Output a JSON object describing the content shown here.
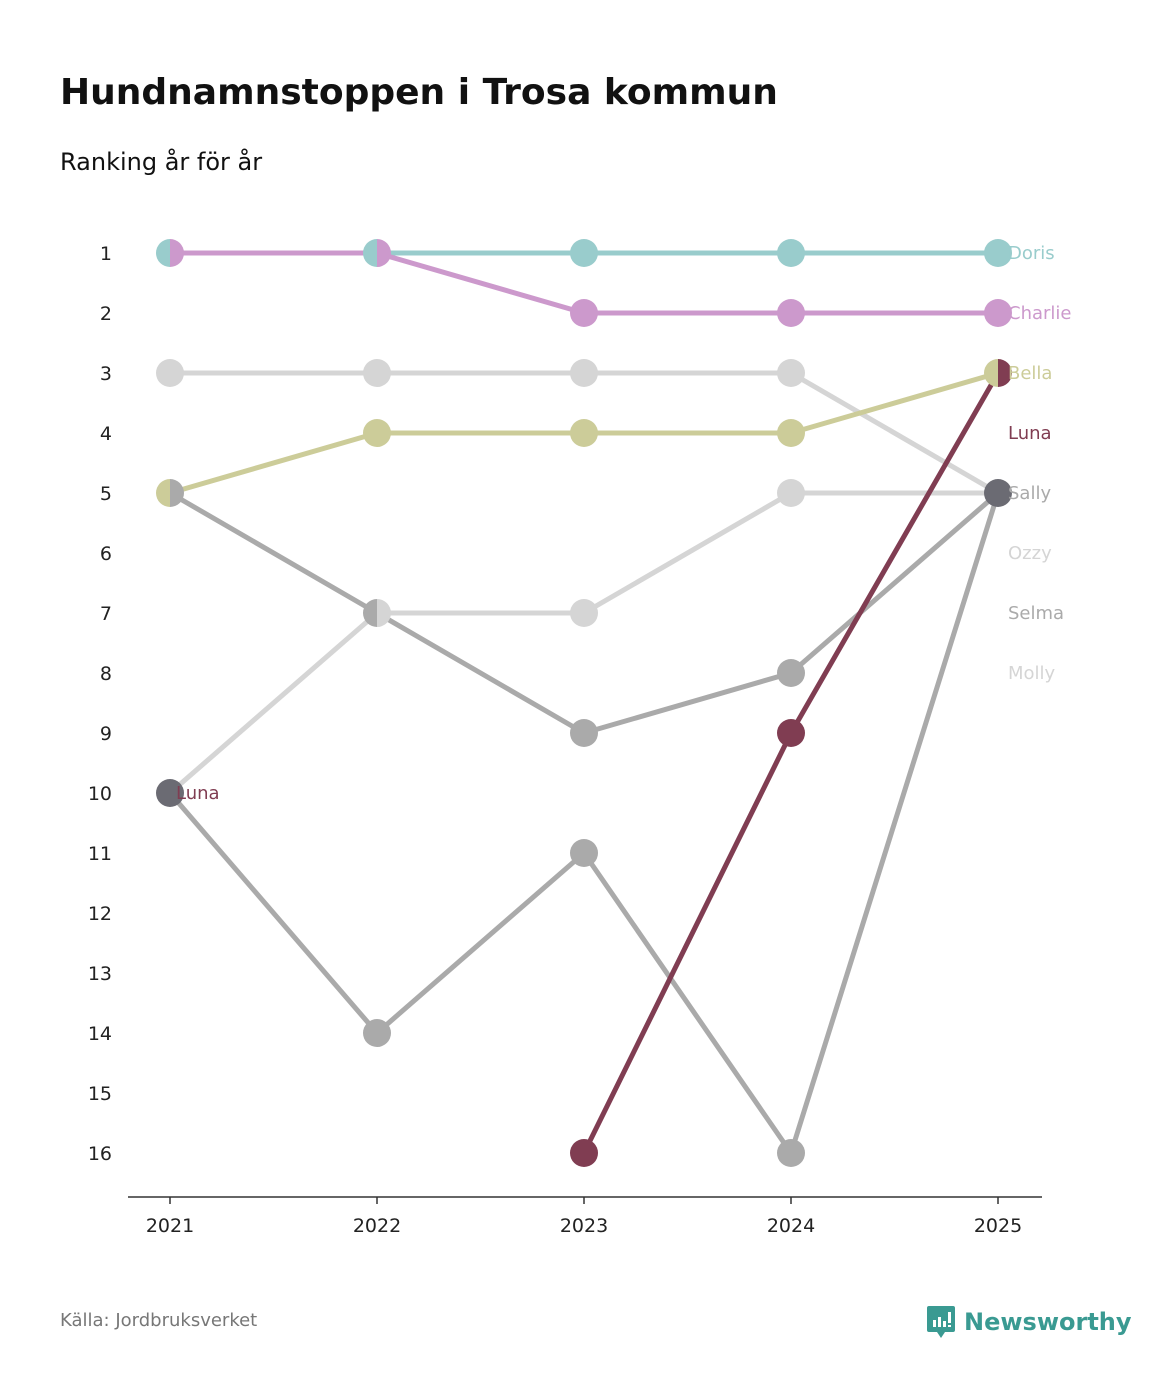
{
  "title": "Hundnamnstoppen i Trosa kommun",
  "subtitle": "Ranking år för år",
  "source": "Källa: Jordbruksverket",
  "brand": "Newsworthy",
  "chart_data": {
    "type": "line",
    "title": "Hundnamnstoppen i Trosa kommun",
    "subtitle": "Ranking år för år",
    "x": [
      "2021",
      "2022",
      "2023",
      "2024",
      "2025"
    ],
    "ylabel": "Ranking",
    "ylim": [
      1,
      16
    ],
    "y_inverted": true,
    "y_ticks": [
      "1",
      "2",
      "3",
      "4",
      "5",
      "6",
      "7",
      "8",
      "9",
      "10",
      "11",
      "12",
      "13",
      "14",
      "15",
      "16"
    ],
    "tie_color": "#6b6b73",
    "series": [
      {
        "name": "Doris",
        "color": "#99cccc",
        "values": [
          1,
          1,
          1,
          1,
          1
        ]
      },
      {
        "name": "Charlie",
        "color": "#cc99cc",
        "values": [
          1,
          1,
          2,
          2,
          2
        ]
      },
      {
        "name": "Bella",
        "color": "#cccc99",
        "values": [
          5,
          4,
          4,
          4,
          3
        ]
      },
      {
        "name": "Luna",
        "color": "#803d52",
        "values": [
          10,
          null,
          16,
          9,
          3
        ],
        "start_label": "Luna"
      },
      {
        "name": "Sally",
        "color": "#aaaaaa",
        "values": [
          5,
          7,
          9,
          8,
          5
        ]
      },
      {
        "name": "Ozzy",
        "color": "#d5d5d5",
        "values": [
          3,
          3,
          3,
          3,
          5
        ]
      },
      {
        "name": "Selma",
        "color": "#aaaaaa",
        "values": [
          10,
          14,
          11,
          16,
          5
        ]
      },
      {
        "name": "Molly",
        "color": "#d5d5d5",
        "values": [
          10,
          7,
          7,
          5,
          5
        ]
      }
    ],
    "legend": "end-labels-right"
  }
}
